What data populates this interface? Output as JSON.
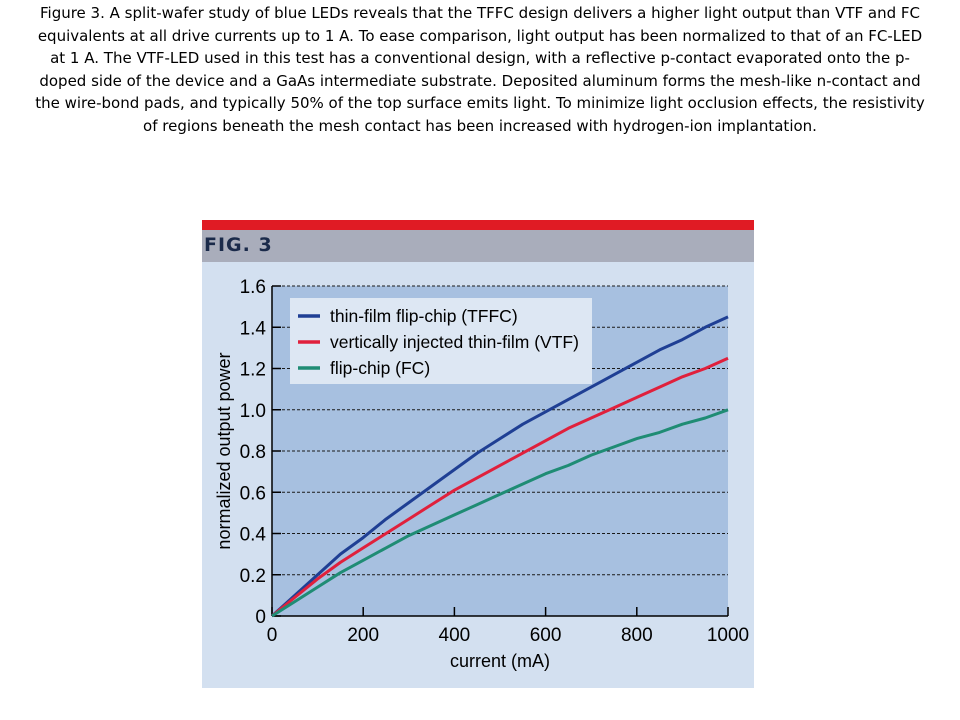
{
  "caption": "Figure 3. A split-wafer study of blue LEDs reveals that the TFFC design delivers a higher light output than VTF and FC equivalents at all drive currents up to 1 A. To ease comparison, light output has been normalized to that of an FC-LED at 1 A. The VTF-LED used in this test has a conventional design, with a reflective p-contact evaporated onto the p-doped side of the device and a GaAs intermediate substrate. Deposited aluminum forms the mesh-like n-contact and the wire-bond pads, and typically 50% of the top surface emits light. To minimize light occlusion effects, the resistivity of regions beneath the mesh contact has been increased with hydrogen-ion implantation.",
  "figure_label": "FIG. 3",
  "colors": {
    "accent_bar": "#e01b24",
    "plot_bg": "#a7c0e0",
    "tffc": "#1f3f94",
    "vtf": "#e0203c",
    "fc": "#1f8c74"
  },
  "chart_data": {
    "type": "line",
    "title": "",
    "xlabel": "current (mA)",
    "ylabel": "normalized output power",
    "xlim": [
      0,
      1000
    ],
    "ylim": [
      0,
      1.6
    ],
    "xticks": [
      0,
      200,
      400,
      600,
      800,
      1000
    ],
    "yticks": [
      0,
      0.2,
      0.4,
      0.6,
      0.8,
      1.0,
      1.2,
      1.4,
      1.6
    ],
    "ytick_labels": [
      "0",
      "0.2",
      "0.4",
      "0.6",
      "0.8",
      "1.0",
      "1.2",
      "1.4",
      "1.6"
    ],
    "grid": "horizontal dashed",
    "legend": "top-left",
    "x": [
      0,
      50,
      100,
      150,
      200,
      250,
      300,
      350,
      400,
      450,
      500,
      550,
      600,
      650,
      700,
      750,
      800,
      850,
      900,
      950,
      1000
    ],
    "series": [
      {
        "name": "thin-film flip-chip (TFFC)",
        "values": [
          0,
          0.1,
          0.2,
          0.3,
          0.38,
          0.47,
          0.55,
          0.63,
          0.71,
          0.79,
          0.86,
          0.93,
          0.99,
          1.05,
          1.11,
          1.17,
          1.23,
          1.29,
          1.34,
          1.4,
          1.45
        ]
      },
      {
        "name": "vertically injected thin-film (VTF)",
        "values": [
          0,
          0.09,
          0.18,
          0.26,
          0.33,
          0.4,
          0.47,
          0.54,
          0.61,
          0.67,
          0.73,
          0.79,
          0.85,
          0.91,
          0.96,
          1.01,
          1.06,
          1.11,
          1.16,
          1.2,
          1.25
        ]
      },
      {
        "name": "flip-chip (FC)",
        "values": [
          0,
          0.07,
          0.14,
          0.21,
          0.27,
          0.33,
          0.39,
          0.44,
          0.49,
          0.54,
          0.59,
          0.64,
          0.69,
          0.73,
          0.78,
          0.82,
          0.86,
          0.89,
          0.93,
          0.96,
          1.0
        ]
      }
    ]
  }
}
